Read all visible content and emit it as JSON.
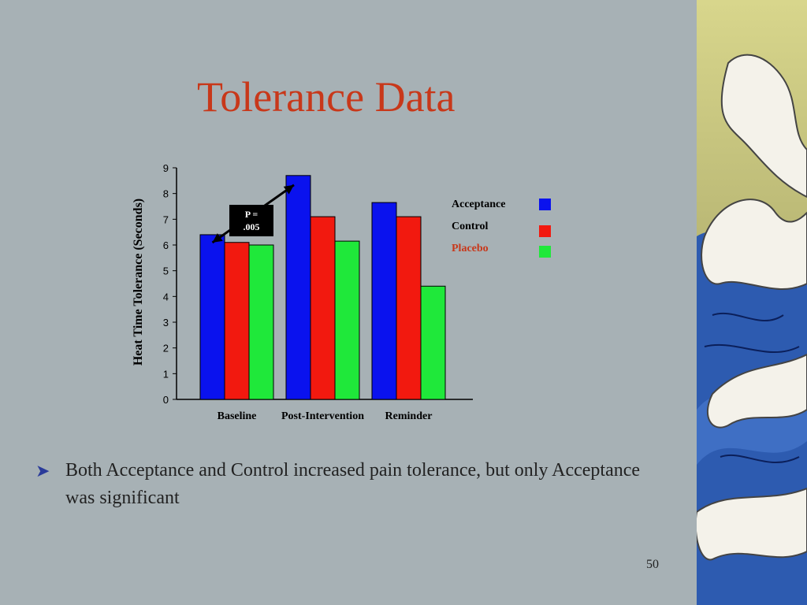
{
  "slide": {
    "title": "Tolerance Data",
    "bullet_text": "Both Acceptance and Control increased pain tolerance, but only Acceptance was significant",
    "page_number": "50"
  },
  "chart_data": {
    "type": "bar",
    "categories": [
      "Baseline",
      "Post-Intervention",
      "Reminder"
    ],
    "series": [
      {
        "name": "Acceptance",
        "values": [
          6.4,
          8.7,
          7.65
        ],
        "color": "#0a12ee"
      },
      {
        "name": "Control",
        "values": [
          6.1,
          7.1,
          7.1
        ],
        "color": "#f2190f"
      },
      {
        "name": "Placebo",
        "values": [
          6.0,
          6.15,
          4.4
        ],
        "color": "#1fe83a"
      }
    ],
    "ylabel": "Heat Time Tolerance (Seconds)",
    "ylim": [
      0,
      9
    ],
    "yticks": [
      0,
      1,
      2,
      3,
      4,
      5,
      6,
      7,
      8,
      9
    ],
    "legend_position": "right",
    "grid": false,
    "annotation": {
      "text_line1": "P =",
      "text_line2": ".005"
    }
  },
  "colors": {
    "title": "#c8381a",
    "background": "#a7b1b5",
    "bullet_arrow": "#2a3b9a",
    "placebo_legend_label": "#c8381a",
    "deco_sky": "#c6c783",
    "deco_sea": "#2d5bb0"
  },
  "icons": {
    "bullet": "arrow-bullet-icon",
    "decoration": "wave-decoration"
  }
}
